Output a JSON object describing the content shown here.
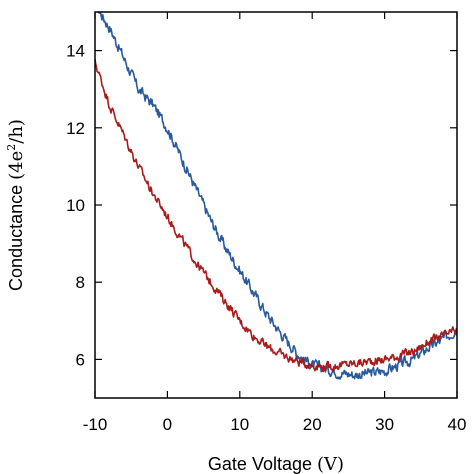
{
  "chart_data": {
    "type": "line",
    "title": "",
    "xlabel_prefix": "Gate Voltage ",
    "xlabel_unit": "(V)",
    "ylabel_prefix": "Conductance ",
    "ylabel_unit_open": "(4e",
    "ylabel_unit_sup": "2",
    "ylabel_unit_close": "/h)",
    "xlim": [
      -10,
      40
    ],
    "ylim": [
      5,
      15
    ],
    "xticks": [
      -10,
      0,
      10,
      20,
      30,
      40
    ],
    "xtick_labels": [
      "-10",
      "0",
      "10",
      "20",
      "30",
      "40"
    ],
    "yticks": [
      6,
      8,
      10,
      12,
      14
    ],
    "ytick_labels": [
      "6",
      "8",
      "10",
      "12",
      "14"
    ],
    "grid": false,
    "legend": "none",
    "series": [
      {
        "color": "#2a5a9a",
        "x": [
          -10,
          -8,
          -6,
          -4,
          -2,
          0,
          2,
          4,
          6,
          8,
          10,
          12,
          14,
          16,
          18,
          20,
          22,
          24,
          26,
          28,
          30,
          32,
          34,
          36,
          38,
          40
        ],
        "y": [
          15.2,
          14.6,
          13.8,
          13.0,
          12.6,
          12.0,
          11.2,
          10.4,
          9.6,
          8.9,
          8.3,
          7.7,
          7.1,
          6.6,
          6.15,
          5.85,
          5.75,
          5.65,
          5.6,
          5.65,
          5.7,
          5.85,
          6.0,
          6.3,
          6.5,
          6.8
        ],
        "noise": 0.22
      },
      {
        "color": "#aa1a1a",
        "x": [
          -10,
          -8,
          -6,
          -4,
          -2,
          0,
          2,
          4,
          6,
          8,
          10,
          12,
          14,
          16,
          18,
          20,
          22,
          24,
          26,
          28,
          30,
          32,
          34,
          36,
          38,
          40
        ],
        "y": [
          13.7,
          12.6,
          11.8,
          11.0,
          10.3,
          9.7,
          9.1,
          8.5,
          8.0,
          7.5,
          7.0,
          6.6,
          6.3,
          6.1,
          5.95,
          5.85,
          5.8,
          5.85,
          5.9,
          5.95,
          6.0,
          6.1,
          6.2,
          6.45,
          6.6,
          6.75
        ],
        "noise": 0.18
      }
    ]
  }
}
